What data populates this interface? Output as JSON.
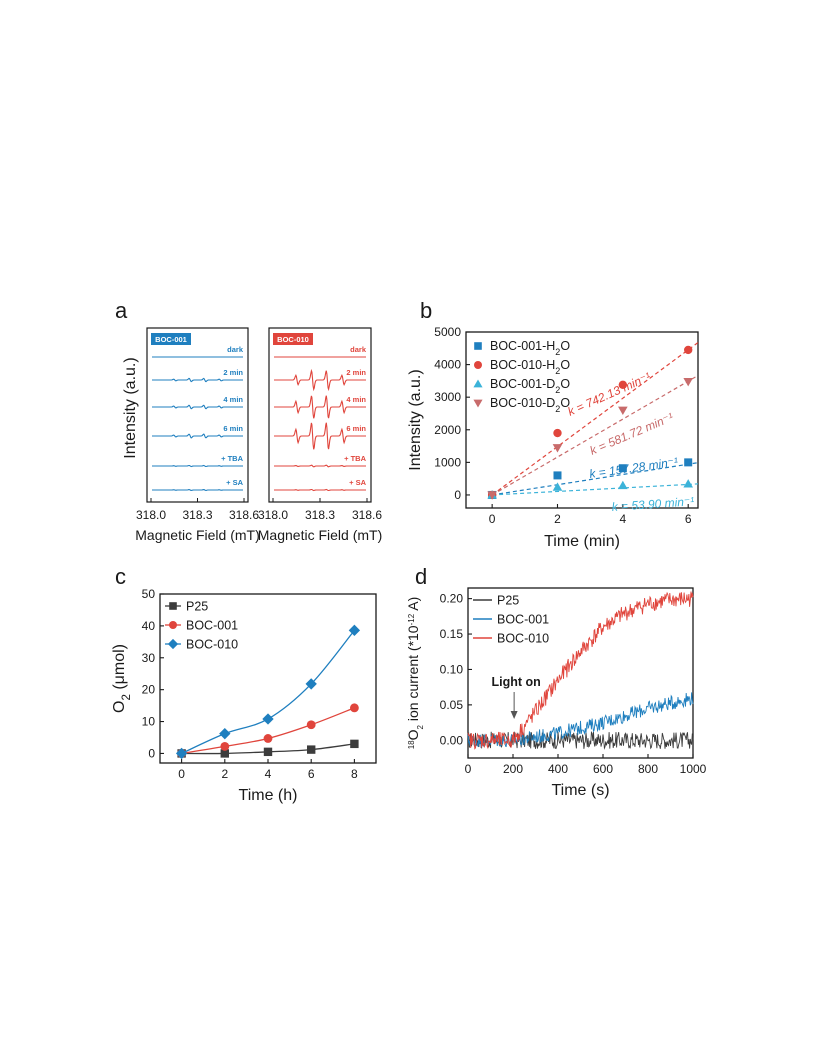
{
  "panels": {
    "a": {
      "letter": "a",
      "ylabel": "Intensity (a.u.)",
      "subpanels": [
        {
          "badge": "BOC-001",
          "color": "#1f7fbf",
          "traces": [
            "dark",
            "2 min",
            "4 min",
            "6 min",
            "+ TBA",
            "+ SA"
          ],
          "peak_amplitude": [
            0,
            0.12,
            0.13,
            0.14,
            0.04,
            0.03
          ],
          "ticks": [
            "318.0",
            "318.3",
            "318.6"
          ],
          "xlabel": "Magnetic Field (mT)"
        },
        {
          "badge": "BOC-010",
          "color": "#e0453c",
          "traces": [
            "dark",
            "2 min",
            "4 min",
            "6 min",
            "+ TBA",
            "+ SA"
          ],
          "peak_amplitude": [
            0,
            0.7,
            0.85,
            1.0,
            0.06,
            0.04
          ],
          "ticks": [
            "318.0",
            "318.3",
            "318.6"
          ],
          "xlabel": "Magnetic Field (mT)"
        }
      ]
    },
    "b": {
      "letter": "b"
    },
    "c": {
      "letter": "c"
    },
    "d": {
      "letter": "d",
      "annotation": "Light on"
    }
  },
  "colors": {
    "blue": "#1f7fbf",
    "red": "#e0453c",
    "cyan": "#3bb3d9",
    "rose": "#c86b6b",
    "gray": "#3c3c3c"
  },
  "chart_data": [
    {
      "id": "b",
      "type": "scatter",
      "xlabel": "Time (min)",
      "ylabel": "Intensity (a.u.)",
      "xlim": [
        -0.8,
        6.3
      ],
      "ylim": [
        -400,
        5000
      ],
      "xticks": [
        0,
        2,
        4,
        6
      ],
      "yticks": [
        0,
        1000,
        2000,
        3000,
        4000,
        5000
      ],
      "legend_position": "top-left",
      "series": [
        {
          "name": "BOC-001-H₂O",
          "marker": "square",
          "color": "#1f7fbf",
          "x": [
            0,
            2,
            4,
            6
          ],
          "y": [
            0,
            600,
            820,
            1000
          ],
          "fit_slope": 157.28,
          "fit_label": "k = 157.28 min⁻¹"
        },
        {
          "name": "BOC-010-H₂O",
          "marker": "circle",
          "color": "#e0453c",
          "x": [
            0,
            2,
            4,
            6
          ],
          "y": [
            0,
            1900,
            3380,
            4450
          ],
          "fit_slope": 742.13,
          "fit_label": "k = 742.13 min⁻¹"
        },
        {
          "name": "BOC-001-D₂O",
          "marker": "triangle-up",
          "color": "#3bb3d9",
          "x": [
            0,
            2,
            4,
            6
          ],
          "y": [
            0,
            240,
            290,
            340
          ],
          "fit_slope": 53.9,
          "fit_label": "k = 53.90 min⁻¹"
        },
        {
          "name": "BOC-010-D₂O",
          "marker": "triangle-down",
          "color": "#c86b6b",
          "x": [
            0,
            2,
            4,
            6
          ],
          "y": [
            0,
            1450,
            2600,
            3480
          ],
          "fit_slope": 581.72,
          "fit_label": "k = 581.72 min⁻¹"
        }
      ]
    },
    {
      "id": "c",
      "type": "line",
      "xlabel": "Time (h)",
      "ylabel": "O₂ (μmol)",
      "xlim": [
        -1,
        9
      ],
      "ylim": [
        -3,
        50
      ],
      "xticks": [
        0,
        2,
        4,
        6,
        8
      ],
      "yticks": [
        0,
        10,
        20,
        30,
        40,
        50
      ],
      "legend_position": "top-left",
      "series": [
        {
          "name": "P25",
          "marker": "square",
          "color": "#3c3c3c",
          "x": [
            0,
            2,
            4,
            6,
            8
          ],
          "y": [
            0,
            0,
            0.5,
            1.2,
            3.0
          ]
        },
        {
          "name": "BOC-001",
          "marker": "circle",
          "color": "#e0453c",
          "x": [
            0,
            2,
            4,
            6,
            8
          ],
          "y": [
            0,
            2.2,
            4.7,
            9.0,
            14.3
          ]
        },
        {
          "name": "BOC-010",
          "marker": "diamond",
          "color": "#1f7fbf",
          "x": [
            0,
            2,
            4,
            6,
            8
          ],
          "y": [
            0,
            6.2,
            10.8,
            21.8,
            38.6
          ]
        }
      ]
    },
    {
      "id": "d",
      "type": "line",
      "xlabel": "Time (s)",
      "ylabel_prefix": "18",
      "ylabel_mid": "O",
      "ylabel_sub": "2",
      "ylabel_post": " ion current (*10",
      "ylabel_exp": "-12",
      "ylabel_end": " A)",
      "xlim": [
        0,
        1000
      ],
      "ylim": [
        -0.025,
        0.215
      ],
      "xticks": [
        0,
        200,
        400,
        600,
        800,
        1000
      ],
      "yticks": [
        0.0,
        0.05,
        0.1,
        0.15,
        0.2
      ],
      "ytick_labels": [
        "0.00",
        "0.05",
        "0.10",
        "0.15",
        "0.20"
      ],
      "legend_position": "top-left",
      "light_on_x": 205,
      "series": [
        {
          "name": "P25",
          "color": "#3c3c3c",
          "x": [
            0,
            200,
            400,
            600,
            800,
            1000
          ],
          "y": [
            0.0,
            0.0,
            0.0,
            0.0,
            0.0,
            0.0
          ]
        },
        {
          "name": "BOC-001",
          "color": "#1f7fbf",
          "x": [
            0,
            200,
            400,
            600,
            800,
            1000
          ],
          "y": [
            0.0,
            0.0,
            0.01,
            0.025,
            0.045,
            0.06
          ]
        },
        {
          "name": "BOC-010",
          "color": "#e0453c",
          "x": [
            0,
            200,
            300,
            400,
            500,
            600,
            700,
            800,
            900,
            1000
          ],
          "y": [
            0.0,
            0.0,
            0.04,
            0.085,
            0.125,
            0.16,
            0.18,
            0.193,
            0.198,
            0.2
          ]
        }
      ]
    }
  ]
}
